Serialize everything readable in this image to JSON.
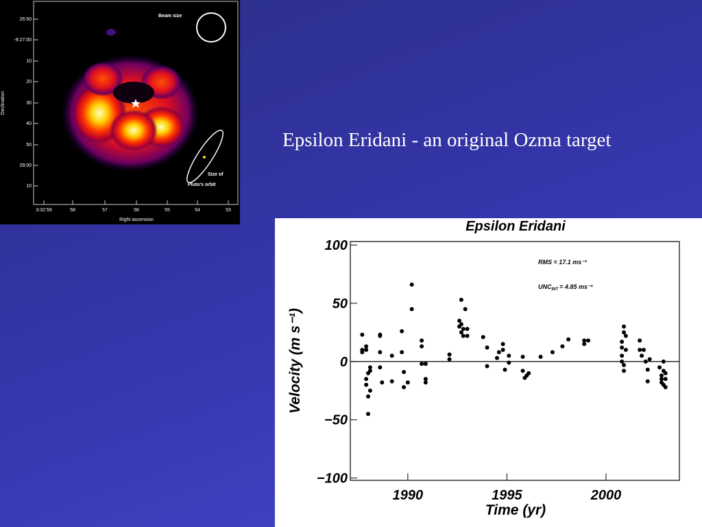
{
  "title": "Epsilon Eridani - an original Ozma target",
  "map": {
    "xlabel": "Right ascension",
    "ylabel": "Declination",
    "beam_label": "Beam size",
    "orbit_label": [
      "Size of",
      "Pluto's orbit"
    ],
    "xticks": [
      "3:32:59",
      "58",
      "57",
      "56",
      "55",
      "54",
      "53"
    ],
    "yticks": [
      "26:50",
      "-9:27:00",
      "10",
      "20",
      "30",
      "40",
      "50",
      "28:00",
      "10"
    ]
  },
  "chart_data": {
    "type": "scatter",
    "title": "Epsilon Eridani",
    "x_label": "Time (yr)",
    "y_label": "Velocity  (m s⁻¹)",
    "annotations": [
      "RMS = 17.1 ms⁻¹",
      {
        "text": "UNC",
        "subscript": "INT",
        "rest": "= 4.85 ms⁻¹"
      }
    ],
    "color": "#000000",
    "xlim": [
      1987.1,
      2003.7
    ],
    "ylim": [
      -102,
      103
    ],
    "xticks": [
      1990,
      1995,
      2000
    ],
    "yticks": [
      {
        "value": -100,
        "label": "−100"
      },
      {
        "value": -50,
        "label": "−50"
      },
      0,
      50,
      100
    ],
    "x": [
      1987.7,
      1987.7,
      1987.7,
      1987.9,
      1987.9,
      1987.9,
      1987.9,
      1988.0,
      1988.0,
      1988.0,
      1988.1,
      1988.1,
      1988.1,
      1988.6,
      1988.6,
      1988.6,
      1988.6,
      1988.7,
      1989.2,
      1989.2,
      1989.7,
      1989.7,
      1989.8,
      1989.8,
      1990.0,
      1990.2,
      1990.2,
      1990.7,
      1990.7,
      1990.7,
      1990.9,
      1990.9,
      1990.9,
      1992.1,
      1992.1,
      1992.6,
      1992.6,
      1992.7,
      1992.7,
      1992.7,
      1992.8,
      1992.8,
      1992.9,
      1993.0,
      1993.0,
      1993.8,
      1994.0,
      1994.0,
      1994.5,
      1994.6,
      1994.8,
      1994.8,
      1994.9,
      1995.1,
      1995.1,
      1995.8,
      1995.8,
      1995.9,
      1996.0,
      1996.1,
      1996.7,
      1997.3,
      1997.8,
      1998.1,
      1998.9,
      1998.9,
      1999.1,
      2000.8,
      2000.8,
      2000.8,
      2000.8,
      2000.9,
      2000.9,
      2000.9,
      2000.9,
      2001.0,
      2001.0,
      2001.7,
      2001.7,
      2001.8,
      2001.9,
      2002.0,
      2002.1,
      2002.1,
      2002.2,
      2002.7,
      2002.8,
      2002.8,
      2002.8,
      2002.9,
      2002.9,
      2002.9,
      2003.0,
      2003.0,
      2003.0
    ],
    "y": [
      23,
      10,
      8,
      -15,
      13,
      10,
      -20,
      -30,
      -45,
      -10,
      -5,
      -8,
      -25,
      23,
      22,
      8,
      -5,
      -18,
      5,
      -17,
      26,
      8,
      -9,
      -22,
      -18,
      45,
      66,
      13,
      18,
      -2,
      -15,
      -18,
      -2,
      2,
      6,
      35,
      30,
      32,
      53,
      25,
      22,
      28,
      45,
      28,
      22,
      21,
      -4,
      12,
      3,
      8,
      10,
      15,
      -7,
      -1,
      5,
      -8,
      4,
      -14,
      -12,
      -10,
      4,
      8,
      13,
      19,
      18,
      15,
      18,
      17,
      12,
      5,
      0,
      25,
      30,
      -3,
      -8,
      22,
      10,
      18,
      10,
      5,
      10,
      0,
      -7,
      -17,
      2,
      -5,
      -12,
      -18,
      -15,
      -8,
      -20,
      0,
      -10,
      -22,
      -15
    ]
  }
}
